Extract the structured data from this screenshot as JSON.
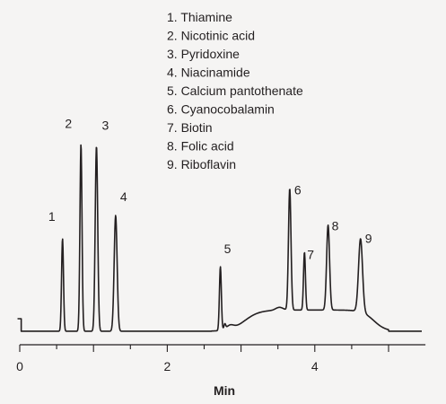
{
  "chart_data": {
    "type": "line",
    "title": "",
    "xlabel": "Min",
    "ylabel": "",
    "xlim": [
      0,
      5.5
    ],
    "ylim": [
      0,
      1
    ],
    "x_ticks": [
      0,
      2,
      4
    ],
    "grid": false,
    "legend_placement": "top-center",
    "colors": {
      "trace": "#231f20",
      "background": "#f5f4f3",
      "text": "#231f20"
    },
    "peaks": [
      {
        "label": "1",
        "name": "Thiamine",
        "rt": 0.58,
        "height": 0.48
      },
      {
        "label": "2",
        "name": "Nicotinic acid",
        "rt": 0.83,
        "height": 0.97
      },
      {
        "label": "3",
        "name": "Pyridoxine",
        "rt": 1.04,
        "height": 0.96
      },
      {
        "label": "4",
        "name": "Niacinamide",
        "rt": 1.3,
        "height": 0.6
      },
      {
        "label": "5",
        "name": "Calcium pantothenate",
        "rt": 2.72,
        "height": 0.33
      },
      {
        "label": "6",
        "name": "Cyanocobalamin",
        "rt": 3.66,
        "height": 0.63
      },
      {
        "label": "7",
        "name": "Biotin",
        "rt": 3.86,
        "height": 0.3
      },
      {
        "label": "8",
        "name": "Folic acid",
        "rt": 4.18,
        "height": 0.44
      },
      {
        "label": "9",
        "name": "Riboflavin",
        "rt": 4.62,
        "height": 0.38
      }
    ],
    "legend": [
      "1. Thiamine",
      "2. Nicotinic acid",
      "3. Pyridoxine",
      "4. Niacinamide",
      "5. Calcium pantothenate",
      "6. Cyanocobalamin",
      "7. Biotin",
      "8. Folic acid",
      "9. Riboflavin"
    ]
  }
}
